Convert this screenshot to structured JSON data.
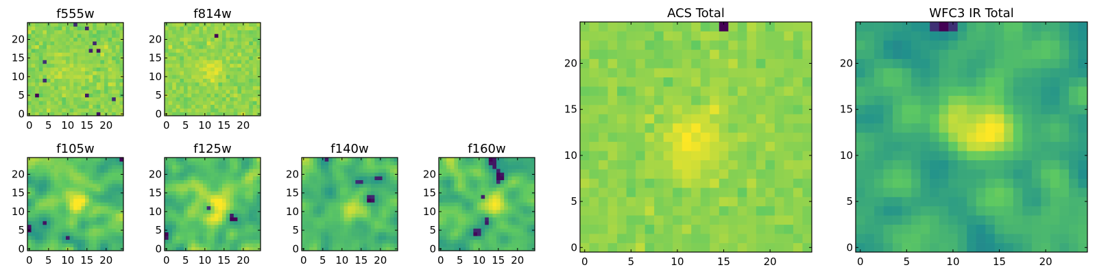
{
  "figure": {
    "colormap": "viridis",
    "colormap_stops": [
      "#440154",
      "#3b528b",
      "#21918c",
      "#5ec962",
      "#fde725"
    ]
  },
  "chart_data": [
    {
      "type": "heatmap",
      "title": "f555w",
      "grid": [
        25,
        25
      ],
      "noise": "white",
      "center": [
        11,
        11
      ],
      "peak": 0.05,
      "sigma": 4,
      "lo": 0.72,
      "hi": 0.94,
      "xlim": [
        0,
        24
      ],
      "ylim": [
        0,
        24
      ],
      "xticks": [
        0,
        5,
        10,
        15,
        20
      ],
      "xtick_labels": [
        "0",
        "5",
        "10",
        "15",
        "20"
      ],
      "yticks": [
        0,
        5,
        10,
        15,
        20
      ],
      "ytick_labels": [
        "0",
        "5",
        "10",
        "15",
        "20"
      ]
    },
    {
      "type": "heatmap",
      "title": "f814w",
      "grid": [
        25,
        25
      ],
      "noise": "white",
      "center": [
        11.5,
        11.5
      ],
      "peak": 0.12,
      "sigma": 2.2,
      "lo": 0.72,
      "hi": 0.94,
      "xlim": [
        0,
        24
      ],
      "ylim": [
        0,
        24
      ],
      "xticks": [
        0,
        5,
        10,
        15,
        20
      ],
      "xtick_labels": [
        "0",
        "5",
        "10",
        "15",
        "20"
      ],
      "yticks": [
        0,
        5,
        10,
        15,
        20
      ],
      "ytick_labels": [
        "0",
        "5",
        "10",
        "15",
        "20"
      ]
    },
    {
      "type": "heatmap",
      "title": "f105w",
      "grid": [
        25,
        25
      ],
      "noise": "smooth",
      "center": [
        12,
        12
      ],
      "peak": 0.28,
      "sigma": 3,
      "lo": 0.5,
      "hi": 0.9,
      "xlim": [
        0,
        24
      ],
      "ylim": [
        0,
        24
      ],
      "xticks": [
        0,
        5,
        10,
        15,
        20
      ],
      "xtick_labels": [
        "0",
        "5",
        "10",
        "15",
        "20"
      ],
      "yticks": [
        0,
        5,
        10,
        15,
        20
      ],
      "ytick_labels": [
        "0",
        "5",
        "10",
        "15",
        "20"
      ]
    },
    {
      "type": "heatmap",
      "title": "f125w",
      "grid": [
        25,
        25
      ],
      "noise": "smooth",
      "center": [
        13,
        12
      ],
      "peak": 0.28,
      "sigma": 3.2,
      "lo": 0.5,
      "hi": 0.9,
      "xlim": [
        0,
        24
      ],
      "ylim": [
        0,
        24
      ],
      "xticks": [
        0,
        5,
        10,
        15,
        20
      ],
      "xtick_labels": [
        "0",
        "5",
        "10",
        "15",
        "20"
      ],
      "yticks": [
        0,
        5,
        10,
        15,
        20
      ],
      "ytick_labels": [
        "0",
        "5",
        "10",
        "15",
        "20"
      ]
    },
    {
      "type": "heatmap",
      "title": "f140w",
      "grid": [
        25,
        25
      ],
      "noise": "smooth",
      "center": [
        13,
        11
      ],
      "peak": 0.3,
      "sigma": 2.6,
      "lo": 0.5,
      "hi": 0.9,
      "xlim": [
        0,
        24
      ],
      "ylim": [
        0,
        24
      ],
      "xticks": [
        0,
        5,
        10,
        15,
        20
      ],
      "xtick_labels": [
        "0",
        "5",
        "10",
        "15",
        "20"
      ],
      "yticks": [
        0,
        5,
        10,
        15,
        20
      ],
      "ytick_labels": [
        "0",
        "5",
        "10",
        "15",
        "20"
      ]
    },
    {
      "type": "heatmap",
      "title": "f160w",
      "grid": [
        25,
        25
      ],
      "noise": "smooth",
      "center": [
        13,
        13
      ],
      "peak": 0.3,
      "sigma": 3,
      "lo": 0.5,
      "hi": 0.9,
      "xlim": [
        0,
        24
      ],
      "ylim": [
        0,
        24
      ],
      "xticks": [
        0,
        5,
        10,
        15,
        20
      ],
      "xtick_labels": [
        "0",
        "5",
        "10",
        "15",
        "20"
      ],
      "yticks": [
        0,
        5,
        10,
        15,
        20
      ],
      "ytick_labels": [
        "0",
        "5",
        "10",
        "15",
        "20"
      ]
    },
    {
      "type": "heatmap",
      "title": "ACS Total",
      "grid": [
        25,
        25
      ],
      "noise": "white",
      "center": [
        12,
        11.5
      ],
      "peak": 0.16,
      "sigma": 2.5,
      "lo": 0.74,
      "hi": 0.92,
      "xlim": [
        0,
        24
      ],
      "ylim": [
        0,
        24
      ],
      "xticks": [
        0,
        5,
        10,
        15,
        20
      ],
      "xtick_labels": [
        "0",
        "5",
        "10",
        "15",
        "20"
      ],
      "yticks": [
        0,
        5,
        10,
        15,
        20
      ],
      "ytick_labels": [
        "0",
        "5",
        "10",
        "15",
        "20"
      ]
    },
    {
      "type": "heatmap",
      "title": "WFC3 IR Total",
      "grid": [
        25,
        25
      ],
      "noise": "smooth",
      "center": [
        13,
        12.5
      ],
      "peak": 0.38,
      "sigma": 2.3,
      "lo": 0.45,
      "hi": 0.78,
      "xlim": [
        0,
        24
      ],
      "ylim": [
        0,
        24
      ],
      "xticks": [
        0,
        5,
        10,
        15,
        20
      ],
      "xtick_labels": [
        "0",
        "5",
        "10",
        "15",
        "20"
      ],
      "yticks": [
        0,
        5,
        10,
        15,
        20
      ],
      "ytick_labels": [
        "0",
        "5",
        "10",
        "15",
        "20"
      ]
    }
  ]
}
